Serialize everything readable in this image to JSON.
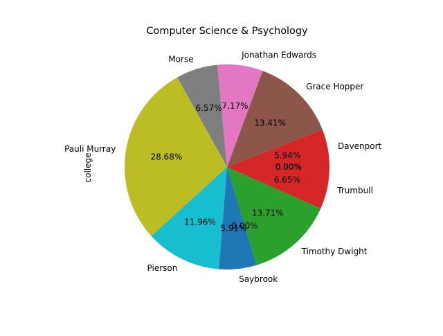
{
  "chart_data": {
    "type": "pie",
    "title": "Computer Science & Psychology",
    "ylabel": "college",
    "start_angle_deg": 0,
    "direction": "counterclockwise",
    "slices": [
      {
        "label": "Davenport",
        "pct_label": "5.94%",
        "value": 5.94,
        "color": "#d62728"
      },
      {
        "label": "Grace Hopper",
        "pct_label": "13.41%",
        "value": 13.41,
        "color": "#8c564b"
      },
      {
        "label": "Jonathan Edwards",
        "pct_label": "7.17%",
        "value": 7.17,
        "color": "#e377c2"
      },
      {
        "label": "Morse",
        "pct_label": "6.57%",
        "value": 6.57,
        "color": "#7f7f7f"
      },
      {
        "label": "Pauli Murray",
        "pct_label": "28.68%",
        "value": 28.68,
        "color": "#bcbd22"
      },
      {
        "label": "Pierson",
        "pct_label": "11.96%",
        "value": 11.96,
        "color": "#17becf"
      },
      {
        "label": "Saybrook",
        "pct_label": "5.91%",
        "value": 5.91,
        "color": "#1f77b4"
      },
      {
        "label": "",
        "pct_label": "0.00%",
        "value": 0.0,
        "color": "#ff7f0e"
      },
      {
        "label": "Timothy Dwight",
        "pct_label": "13.71%",
        "value": 13.71,
        "color": "#2ca02c"
      },
      {
        "label": "Trumbull",
        "pct_label": "6.65%",
        "value": 6.65,
        "color": "#d62728"
      },
      {
        "label": "",
        "pct_label": "0.00%",
        "value": 0.0,
        "color": "#9467bd"
      },
      {
        "label": "",
        "pct_label": "0.00%",
        "value": 0.0,
        "color": "#8c564b"
      },
      {
        "label": "",
        "pct_label": "0.00%",
        "value": 0.0,
        "color": "#e377c2"
      }
    ]
  }
}
